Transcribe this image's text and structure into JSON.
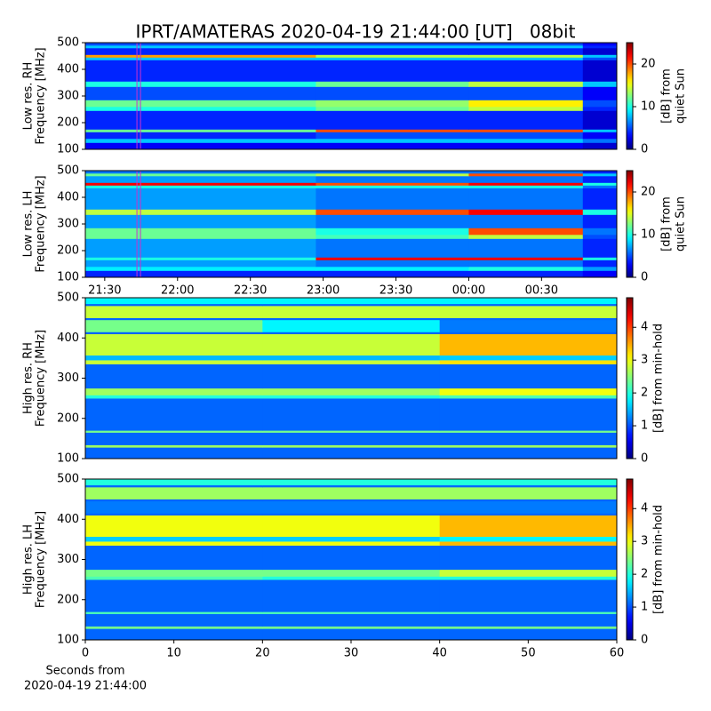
{
  "title": "IPRT/AMATERAS 2020-04-19 21:44:00 [UT]   08bit",
  "chart_data": [
    {
      "type": "heatmap",
      "ylabel": [
        "Low res. RH",
        "Frequency [MHz]"
      ],
      "colorbar_label": [
        "[dB] from",
        "quiet Sun"
      ],
      "colormap": "jet",
      "xlim": [
        1282,
        1501
      ],
      "ylim": [
        100,
        500
      ],
      "yticks": [
        100,
        200,
        300,
        400,
        500
      ],
      "zlim": [
        0,
        25
      ],
      "zticks": [
        0,
        10,
        20
      ],
      "vlines": [
        {
          "x": 1304,
          "color": "#cc33cc"
        }
      ],
      "x_edges": [
        1282,
        1377,
        1440,
        1487,
        1501
      ],
      "y_edges": [
        100,
        125,
        140,
        165,
        175,
        245,
        260,
        285,
        335,
        355,
        435,
        445,
        455,
        480,
        490,
        500
      ],
      "z": [
        [
          3,
          3,
          3,
          2
        ],
        [
          8,
          8,
          8,
          6
        ],
        [
          4,
          5,
          5,
          3
        ],
        [
          12,
          20,
          20,
          8
        ],
        [
          4,
          4,
          4,
          2
        ],
        [
          10,
          12,
          14,
          4
        ],
        [
          12,
          13,
          16,
          5
        ],
        [
          5,
          5,
          5,
          3
        ],
        [
          10,
          12,
          14,
          8
        ],
        [
          4,
          4,
          4,
          2
        ],
        [
          8,
          8,
          8,
          5
        ],
        [
          18,
          14,
          14,
          8
        ],
        [
          4,
          4,
          4,
          2
        ],
        [
          8,
          8,
          8,
          4
        ],
        [
          5,
          5,
          5,
          3
        ]
      ]
    },
    {
      "type": "heatmap",
      "ylabel": [
        "Low res. LH",
        "Frequency [MHz]"
      ],
      "colorbar_label": [
        "[dB] from",
        "quiet Sun"
      ],
      "colormap": "jet",
      "xlim": [
        1282,
        1501
      ],
      "ylim": [
        100,
        500
      ],
      "yticks": [
        100,
        200,
        300,
        400,
        500
      ],
      "xticks": [
        {
          "value": 1290,
          "label": "21:30"
        },
        {
          "value": 1320,
          "label": "22:00"
        },
        {
          "value": 1350,
          "label": "22:30"
        },
        {
          "value": 1380,
          "label": "23:00"
        },
        {
          "value": 1410,
          "label": "23:30"
        },
        {
          "value": 1440,
          "label": "00:00"
        },
        {
          "value": 1470,
          "label": "00:30"
        }
      ],
      "zlim": [
        0,
        25
      ],
      "zticks": [
        0,
        10,
        20
      ],
      "vlines": [
        {
          "x": 1304,
          "color": "#cc33cc"
        }
      ],
      "x_edges": [
        1282,
        1377,
        1440,
        1487,
        1501
      ],
      "y_edges": [
        100,
        125,
        140,
        165,
        175,
        245,
        260,
        285,
        335,
        355,
        435,
        445,
        455,
        480,
        490,
        500
      ],
      "z": [
        [
          4,
          4,
          4,
          3
        ],
        [
          9,
          9,
          10,
          7
        ],
        [
          7,
          6,
          6,
          4
        ],
        [
          10,
          22,
          22,
          10
        ],
        [
          7,
          6,
          6,
          4
        ],
        [
          12,
          11,
          14,
          5
        ],
        [
          12,
          10,
          20,
          6
        ],
        [
          7,
          6,
          6,
          4
        ],
        [
          14,
          20,
          22,
          10
        ],
        [
          7,
          6,
          6,
          4
        ],
        [
          10,
          10,
          10,
          6
        ],
        [
          22,
          20,
          22,
          10
        ],
        [
          7,
          6,
          6,
          4
        ],
        [
          12,
          14,
          20,
          8
        ],
        [
          6,
          6,
          6,
          4
        ]
      ]
    },
    {
      "type": "heatmap",
      "ylabel": [
        "High res. RH",
        "Frequency [MHz]"
      ],
      "colorbar_label": [
        "[dB] from min-hold"
      ],
      "colormap": "jet",
      "xlim": [
        0,
        60
      ],
      "ylim": [
        100,
        500
      ],
      "yticks": [
        100,
        200,
        300,
        400,
        500
      ],
      "zlim": [
        0,
        4.9
      ],
      "zticks": [
        0,
        1,
        2,
        3,
        4
      ],
      "x_edges": [
        0,
        20,
        40,
        60
      ],
      "y_edges": [
        100,
        128,
        134,
        165,
        170,
        250,
        258,
        275,
        335,
        345,
        357,
        410,
        415,
        445,
        450,
        480,
        485,
        500
      ],
      "z": [
        [
          1.1,
          1.1,
          1.1
        ],
        [
          2.6,
          2.6,
          2.6
        ],
        [
          1.1,
          1.1,
          1.1
        ],
        [
          2.4,
          2.4,
          2.4
        ],
        [
          1.1,
          1.1,
          1.1
        ],
        [
          2,
          2,
          2.2
        ],
        [
          2.6,
          2.6,
          3
        ],
        [
          1.1,
          1.1,
          1.1
        ],
        [
          2.8,
          2.8,
          3.2
        ],
        [
          1.5,
          1.5,
          1.6
        ],
        [
          2.8,
          2.8,
          3.4
        ],
        [
          1.1,
          1.1,
          1.1
        ],
        [
          2.4,
          1.8,
          1.2
        ],
        [
          1.1,
          1.1,
          1.1
        ],
        [
          2.8,
          2.8,
          2.8
        ],
        [
          1.1,
          1.1,
          1.1
        ],
        [
          1.8,
          1.8,
          1.8
        ]
      ]
    },
    {
      "type": "heatmap",
      "ylabel": [
        "High res. LH",
        "Frequency [MHz]"
      ],
      "colorbar_label": [
        "[dB] from min-hold"
      ],
      "colormap": "jet",
      "xlim": [
        0,
        60
      ],
      "ylim": [
        100,
        500
      ],
      "yticks": [
        100,
        200,
        300,
        400,
        500
      ],
      "xticks": [
        0,
        10,
        20,
        30,
        40,
        50,
        60
      ],
      "xlabel": [
        "Seconds from",
        "2020-04-19 21:44:00"
      ],
      "zlim": [
        0,
        4.9
      ],
      "zticks": [
        0,
        1,
        2,
        3,
        4
      ],
      "x_edges": [
        0,
        20,
        40,
        60
      ],
      "y_edges": [
        100,
        128,
        134,
        165,
        170,
        250,
        258,
        275,
        335,
        345,
        357,
        410,
        415,
        445,
        450,
        480,
        485,
        500
      ],
      "z": [
        [
          1.1,
          1.1,
          1.1
        ],
        [
          2.4,
          2.4,
          2.4
        ],
        [
          1.1,
          1.1,
          1.1
        ],
        [
          2.2,
          2.2,
          2.2
        ],
        [
          1.1,
          1.1,
          1.1
        ],
        [
          2.2,
          2,
          2
        ],
        [
          2.4,
          2.4,
          2.8
        ],
        [
          1.1,
          1.1,
          1.1
        ],
        [
          3,
          3,
          3.4
        ],
        [
          1.6,
          1.6,
          1.8
        ],
        [
          3,
          3,
          3.4
        ],
        [
          1.1,
          1.1,
          1.1
        ],
        [
          1.2,
          1.2,
          1.2
        ],
        [
          1.1,
          1.1,
          1.1
        ],
        [
          2.6,
          2.6,
          2.6
        ],
        [
          1.1,
          1.1,
          1.1
        ],
        [
          2,
          2,
          2
        ]
      ]
    }
  ]
}
